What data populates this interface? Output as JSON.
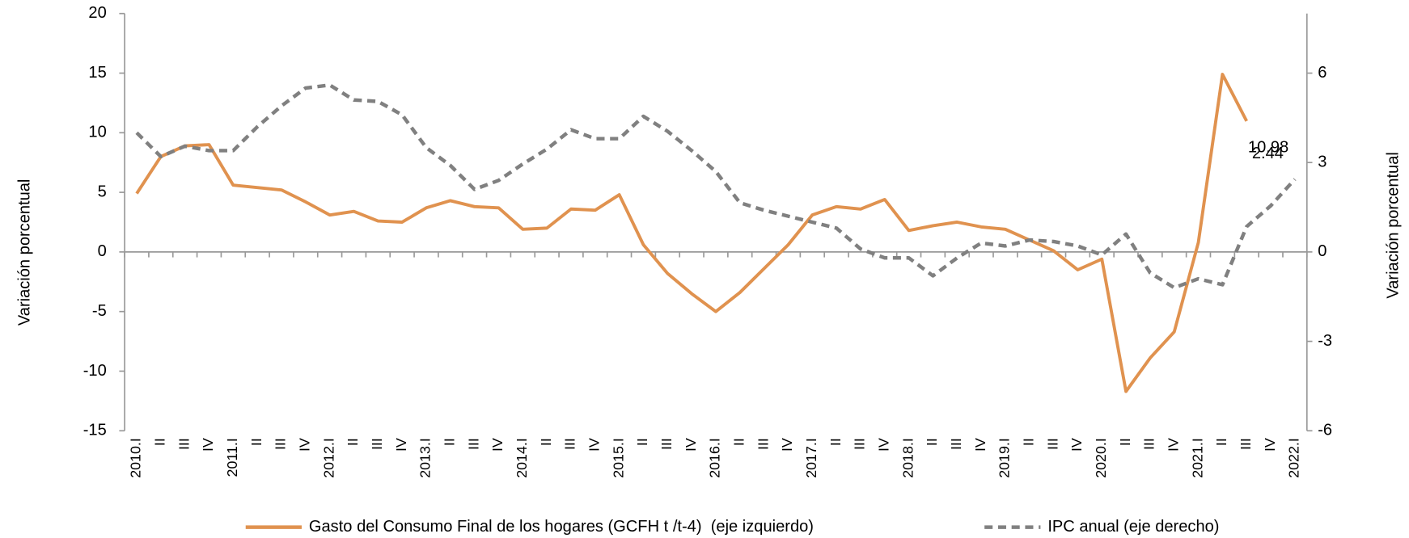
{
  "chart_data": {
    "type": "line",
    "categories": [
      "2010.I",
      "II",
      "III",
      "IV",
      "2011.I",
      "II",
      "III",
      "IV",
      "2012.I",
      "II",
      "III",
      "IV",
      "2013.I",
      "II",
      "III",
      "IV",
      "2014.I",
      "II",
      "III",
      "IV",
      "2015.I",
      "II",
      "III",
      "IV",
      "2016.I",
      "II",
      "III",
      "IV",
      "2017.I",
      "II",
      "III",
      "IV",
      "2018.I",
      "II",
      "III",
      "IV",
      "2019.I",
      "II",
      "III",
      "IV",
      "2020.I",
      "II",
      "III",
      "IV",
      "2021.I",
      "II",
      "III",
      "IV",
      "2022.I"
    ],
    "series": [
      {
        "name": "Gasto del Consumo Final de los hogares (GCFH t /t-4)  (eje izquierdo)",
        "color": "#e0924f",
        "axis": "y",
        "values": [
          4.9,
          8.0,
          8.9,
          9.0,
          5.6,
          5.4,
          5.2,
          4.2,
          3.1,
          3.4,
          2.6,
          2.5,
          3.7,
          4.3,
          3.8,
          3.7,
          1.9,
          2.0,
          3.6,
          3.5,
          4.8,
          0.6,
          -1.8,
          -3.5,
          -5.0,
          -3.4,
          -1.4,
          0.6,
          3.1,
          3.8,
          3.6,
          4.4,
          1.8,
          2.2,
          2.5,
          2.1,
          1.9,
          1.0,
          0.1,
          -1.5,
          -0.6,
          -11.7,
          -8.9,
          -6.7,
          0.8,
          14.9,
          10.98,
          null,
          null
        ],
        "value_labels": [
          null,
          null,
          null,
          null,
          null,
          null,
          null,
          null,
          null,
          null,
          null,
          null,
          null,
          null,
          null,
          null,
          null,
          null,
          null,
          null,
          null,
          null,
          null,
          null,
          null,
          null,
          null,
          null,
          null,
          null,
          null,
          null,
          null,
          null,
          null,
          null,
          null,
          null,
          null,
          null,
          null,
          null,
          null,
          null,
          null,
          null,
          "10.98",
          null,
          null
        ]
      },
      {
        "name": "IPC anual (eje derecho)",
        "color": "#808080",
        "axis": "y2",
        "dashed": true,
        "values": [
          4.0,
          3.2,
          3.55,
          3.4,
          3.4,
          4.2,
          4.9,
          5.5,
          5.6,
          5.1,
          5.05,
          4.6,
          3.5,
          2.9,
          2.1,
          2.4,
          2.95,
          3.45,
          4.1,
          3.8,
          3.8,
          4.55,
          4.05,
          3.4,
          2.7,
          1.65,
          1.4,
          1.2,
          1.0,
          0.8,
          0.1,
          -0.2,
          -0.2,
          -0.8,
          -0.2,
          0.3,
          0.2,
          0.4,
          0.35,
          0.2,
          -0.1,
          0.6,
          -0.7,
          -1.2,
          -0.9,
          -1.1,
          0.85,
          1.55,
          2.44
        ],
        "value_labels": [
          null,
          null,
          null,
          null,
          null,
          null,
          null,
          null,
          null,
          null,
          null,
          null,
          null,
          null,
          null,
          null,
          null,
          null,
          null,
          null,
          null,
          null,
          null,
          null,
          null,
          null,
          null,
          null,
          null,
          null,
          null,
          null,
          null,
          null,
          null,
          null,
          null,
          null,
          null,
          null,
          null,
          null,
          null,
          null,
          null,
          null,
          null,
          null,
          "2.44"
        ]
      }
    ],
    "ylabel": "Variación porcentual",
    "y2label": "Variación porcentual",
    "ylim": [
      -15,
      20
    ],
    "yticks": [
      -15,
      -10,
      -5,
      0,
      5,
      10,
      15,
      20
    ],
    "y2lim": [
      -6,
      8
    ],
    "y2ticks": [
      -6,
      -3,
      0,
      3,
      6
    ],
    "legend": "bottom"
  }
}
